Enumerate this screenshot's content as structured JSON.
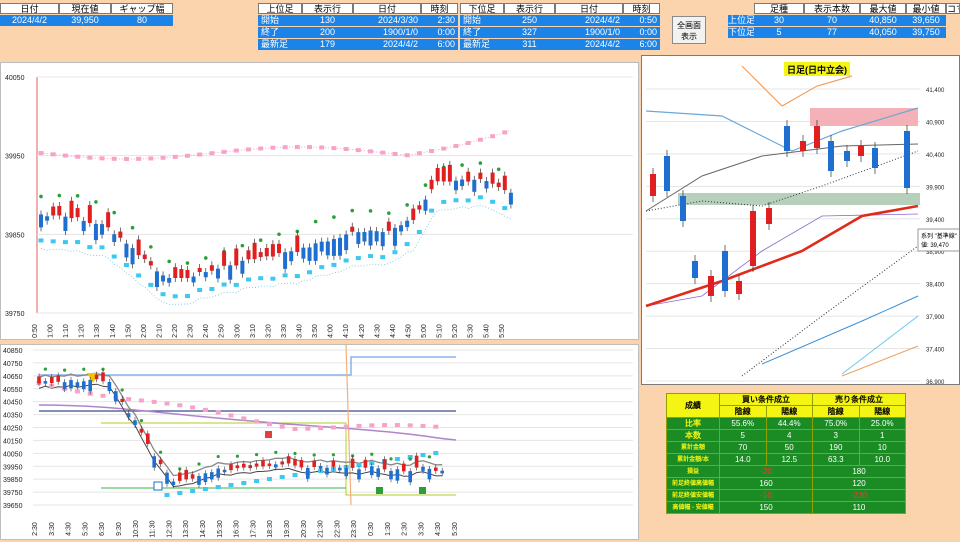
{
  "top_left": {
    "headers": [
      "日付",
      "現在値",
      "ギャップ幅"
    ],
    "values": [
      "2024/4/2",
      "39,950",
      "80"
    ]
  },
  "upper": {
    "headers": [
      "上位足",
      "表示行",
      "日付",
      "時刻"
    ],
    "rows": [
      [
        "開始",
        "130",
        "2024/3/30",
        "2:30"
      ],
      [
        "終了",
        "200",
        "1900/1/0",
        "0:00"
      ],
      [
        "最新足",
        "179",
        "2024/4/2",
        "6:00"
      ]
    ]
  },
  "lower": {
    "headers": [
      "下位足",
      "表示行",
      "日付",
      "時刻"
    ],
    "rows": [
      [
        "開始",
        "250",
        "2024/4/2",
        "0:50"
      ],
      [
        "終了",
        "327",
        "1900/1/0",
        "0:00"
      ],
      [
        "最新足",
        "311",
        "2024/4/2",
        "6:00"
      ]
    ]
  },
  "fullscreen_button": {
    "line1": "全画面",
    "line2": "表示"
  },
  "summary": {
    "headers": [
      "足種",
      "表示本数",
      "最大値",
      "最小値",
      "コマ"
    ],
    "rows": [
      [
        "上位足",
        "30",
        "70",
        "40,850",
        "39,650"
      ],
      [
        "下位足",
        "5",
        "77",
        "40,050",
        "39,750"
      ]
    ]
  },
  "main_chart": {
    "y_labels": [
      "40050",
      "39950",
      "39850",
      "39750"
    ],
    "x_labels": [
      "0:50",
      "1:00",
      "1:10",
      "1:20",
      "1:30",
      "1:40",
      "1:50",
      "2:00",
      "2:10",
      "2:20",
      "2:30",
      "2:40",
      "2:50",
      "3:00",
      "3:10",
      "3:20",
      "3:30",
      "3:40",
      "3:50",
      "4:00",
      "4:10",
      "4:20",
      "4:30",
      "4:40",
      "4:50",
      "5:00",
      "5:10",
      "5:20",
      "5:30",
      "5:40",
      "5:50"
    ]
  },
  "lower_chart": {
    "y_labels": [
      "40850",
      "40750",
      "40650",
      "40550",
      "40450",
      "40350",
      "40250",
      "40150",
      "40050",
      "39950",
      "39850",
      "39750",
      "39650"
    ],
    "x_labels": [
      "2:30",
      "3:30",
      "4:30",
      "5:30",
      "6:30",
      "9:30",
      "10:30",
      "11:30",
      "12:30",
      "13:30",
      "14:30",
      "15:30",
      "16:30",
      "17:30",
      "18:30",
      "19:30",
      "20:30",
      "21:30",
      "22:30",
      "23:30",
      "0:30",
      "1:30",
      "2:30",
      "3:30",
      "4:30",
      "5:30"
    ]
  },
  "daily_chart": {
    "title": "日足(日中立会)",
    "y_labels": [
      "41,400",
      "40,900",
      "40,400",
      "39,900",
      "39,400",
      "38,900",
      "38,400",
      "37,900",
      "37,400",
      "36,900"
    ],
    "tooltip_line1": "系列 \"基準線\"",
    "tooltip_line2": "値: 39,470"
  },
  "stats": {
    "title": "成績",
    "buy_header": "買い条件成立",
    "sell_header": "売り条件成立",
    "sub_headers": [
      "陰線",
      "陽線",
      "陰線",
      "陽線"
    ],
    "rows": [
      {
        "label": "比率",
        "values": [
          "55.6%",
          "44.4%",
          "75.0%",
          "25.0%"
        ]
      },
      {
        "label": "本数",
        "values": [
          "5",
          "4",
          "3",
          "1"
        ]
      },
      {
        "label": "累計金額",
        "values": [
          "70",
          "50",
          "190",
          "10"
        ]
      },
      {
        "label": "累計金額/本",
        "values": [
          "14.0",
          "12.5",
          "63.3",
          "10.0"
        ]
      }
    ],
    "wide_rows": [
      {
        "label": "損益",
        "buy": "-20",
        "sell": "180"
      },
      {
        "label": "前足終値高値幅",
        "buy": "160",
        "sell": "120"
      },
      {
        "label": "前足終値安値幅",
        "buy": "-10",
        "sell": "-230"
      },
      {
        "label": "高値幅 - 安値幅",
        "buy": "150",
        "sell": "110"
      }
    ]
  },
  "colors": {
    "background": "#fbd3ac",
    "cell_blue": "#1c83e8",
    "bull": "#1e6fd0",
    "bear": "#e02020",
    "pink_cloud": "#f7a3c8",
    "cyan_cloud": "#3cc8f0",
    "green_line": "#2e9e3a",
    "stats_green": "#1b8c24",
    "stats_yellow": "#f5f514"
  }
}
